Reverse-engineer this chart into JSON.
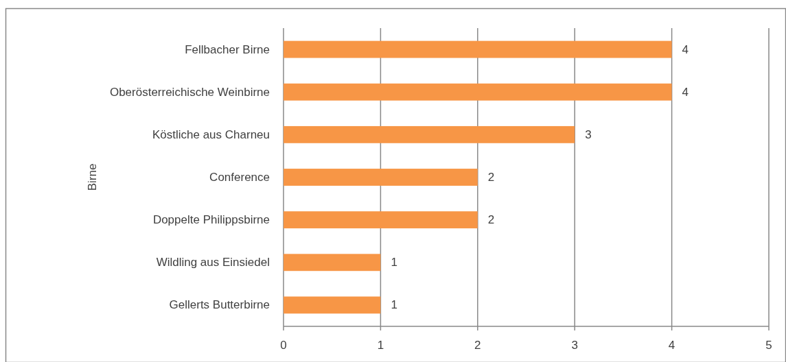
{
  "chart_data": {
    "type": "bar",
    "orientation": "horizontal",
    "ylabel": "Birne",
    "categories": [
      "Fellbacher Birne",
      "Oberösterreichische Weinbirne",
      "Köstliche aus Charneu",
      "Conference",
      "Doppelte Philippsbirne",
      "Wildling aus Einsiedel",
      "Gellerts Butterbirne"
    ],
    "values": [
      4,
      4,
      3,
      2,
      2,
      1,
      1
    ],
    "color": "#f79646",
    "xlim": [
      0,
      5
    ],
    "xticks": [
      0,
      1,
      2,
      3,
      4,
      5
    ],
    "grid": "x",
    "data_labels": true
  }
}
